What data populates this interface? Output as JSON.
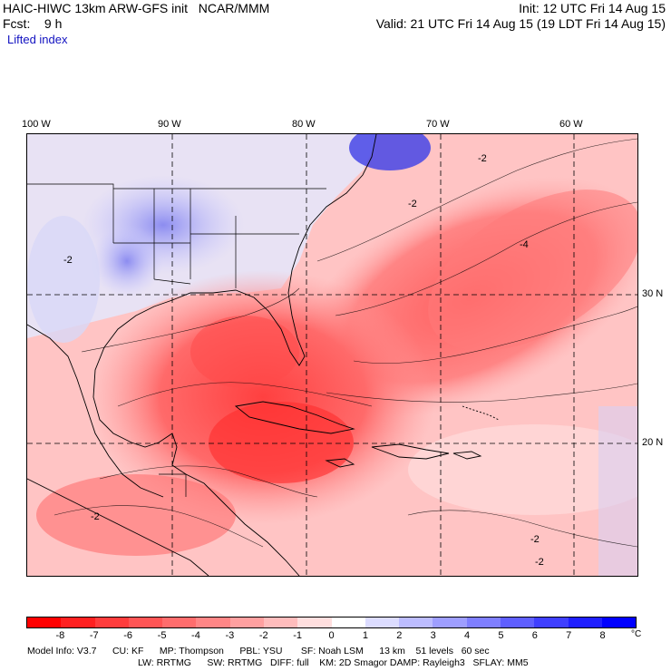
{
  "header": {
    "title_left": "HAIC-HIWC 13km ARW-GFS init   NCAR/MMM",
    "init": "Init: 12 UTC Fri 14 Aug 15",
    "fcst": "Fcst:    9 h",
    "valid": "Valid: 21 UTC Fri 14 Aug 15 (19 LDT Fri 14 Aug 15)",
    "field": "Lifted index"
  },
  "map": {
    "lon_labels": [
      "100 W",
      "90 W",
      "80 W",
      "70 W",
      "60 W"
    ],
    "lat_labels": [
      "30 N",
      "20 N"
    ],
    "contour_labels": [
      "-2",
      "-2",
      "-4",
      "-2",
      "-2",
      "-2",
      "-2"
    ]
  },
  "colorbar": {
    "labels": [
      "-8",
      "-7",
      "-6",
      "-5",
      "-4",
      "-3",
      "-2",
      "-1",
      "0",
      "1",
      "2",
      "3",
      "4",
      "5",
      "6",
      "7",
      "8"
    ],
    "unit": "°C",
    "colors": [
      "#ff0000",
      "#ff2020",
      "#ff3c3c",
      "#ff5555",
      "#ff6d6d",
      "#ff8686",
      "#ffa0a0",
      "#ffbcbc",
      "#ffdede",
      "#ffffff",
      "#dcdcff",
      "#bcbcff",
      "#9e9eff",
      "#7f7fff",
      "#5f5fff",
      "#3f3fff",
      "#1f1fff",
      "#0000ff"
    ]
  },
  "footer": {
    "line1": "Model Info: V3.7      CU: KF      MP: Thompson      PBL: YSU       SF: Noah LSM      13 km    51 levels   60 sec",
    "line2": "LW: RRTMG      SW: RRTMG   DIFF: full    KM: 2D Smagor DAMP: Rayleigh3   SFLAY: MM5"
  }
}
